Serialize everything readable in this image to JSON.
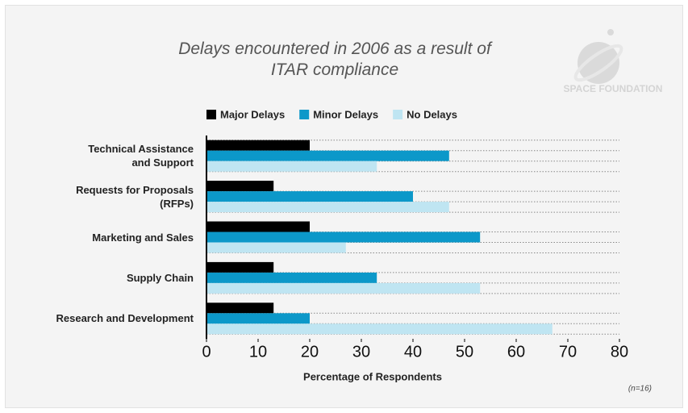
{
  "chart_data": {
    "type": "bar",
    "orientation": "horizontal",
    "title": "Delays encountered in 2006 as a result of ITAR compliance",
    "logo_text": "SPACE FOUNDATION",
    "categories": [
      "Technical Assistance\nand Support",
      "Requests for Proposals\n(RFPs)",
      "Marketing and Sales",
      "Supply Chain",
      "Research and Development"
    ],
    "series": [
      {
        "name": "Major Delays",
        "color": "#000000",
        "values": [
          20,
          13,
          20,
          13,
          13
        ]
      },
      {
        "name": "Minor Delays",
        "color": "#0c98c9",
        "values": [
          47,
          40,
          53,
          33,
          20
        ]
      },
      {
        "name": "No Delays",
        "color": "#bfe5f2",
        "values": [
          33,
          47,
          27,
          53,
          67
        ]
      }
    ],
    "xlabel": "Percentage of Respondents",
    "xlim": [
      0,
      80
    ],
    "xticks": [
      0,
      10,
      20,
      30,
      40,
      50,
      60,
      70,
      80
    ],
    "legend": "top",
    "note": "(n=16)"
  }
}
